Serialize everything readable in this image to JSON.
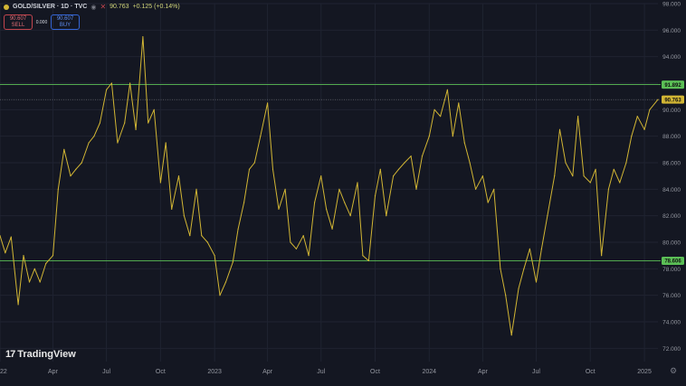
{
  "header": {
    "symbol": "GOLD/SILVER · 1D · TVC",
    "last_value": "90.763",
    "change": "+0.125 (+0.14%)",
    "eye_icon": "eye-off-icon",
    "remove_icon": "close-icon",
    "sell_price": "90.607",
    "sell_label": "SELL",
    "spread": "0.000",
    "buy_price": "90.607",
    "buy_label": "BUY"
  },
  "branding": {
    "logo_text": "TradingView",
    "settings_icon": "gear-icon"
  },
  "colors": {
    "background": "#141722",
    "line": "#d2b634",
    "level_line": "#5bbf56",
    "grid": "#1f2331",
    "axis_text": "#9598a1"
  },
  "chart_data": {
    "type": "line",
    "title": "",
    "xlabel": "",
    "ylabel": "",
    "ylim": [
      71,
      98
    ],
    "xlim": [
      "2022-01-01",
      "2025-01-24"
    ],
    "y_ticks": [
      "98.000",
      "96.000",
      "94.000",
      "92.000",
      "90.000",
      "88.000",
      "86.000",
      "84.000",
      "82.000",
      "80.000",
      "78.000",
      "76.000",
      "74.000",
      "72.000"
    ],
    "y_tick_values": [
      98,
      96,
      94,
      92,
      90,
      88,
      86,
      84,
      82,
      80,
      78,
      76,
      74,
      72
    ],
    "x_ticks": [
      "2022",
      "Apr",
      "Jul",
      "Oct",
      "2023",
      "Apr",
      "Jul",
      "Oct",
      "2024",
      "Apr",
      "Jul",
      "Oct",
      "2025"
    ],
    "x_tick_values": [
      "2022-01-01",
      "2022-04-01",
      "2022-07-01",
      "2022-10-01",
      "2023-01-01",
      "2023-04-01",
      "2023-07-01",
      "2023-10-01",
      "2024-01-01",
      "2024-04-01",
      "2024-07-01",
      "2024-10-01",
      "2025-01-01"
    ],
    "horizontal_levels": [
      {
        "value": 91.892,
        "label": "91.892"
      },
      {
        "value": 78.606,
        "label": "78.606"
      }
    ],
    "last_price": {
      "value": 90.763,
      "label": "90.763"
    },
    "grid": true,
    "series": [
      {
        "x": [
          "2022-01-01",
          "2022-01-10",
          "2022-01-20",
          "2022-02-01",
          "2022-02-10",
          "2022-02-20",
          "2022-03-01",
          "2022-03-10",
          "2022-03-20",
          "2022-04-01",
          "2022-04-10",
          "2022-04-20",
          "2022-05-01",
          "2022-05-10",
          "2022-05-20",
          "2022-06-01",
          "2022-06-10",
          "2022-06-20",
          "2022-07-01",
          "2022-07-10",
          "2022-07-20",
          "2022-08-01",
          "2022-08-10",
          "2022-08-20",
          "2022-09-01",
          "2022-09-10",
          "2022-09-20",
          "2022-10-01",
          "2022-10-10",
          "2022-10-20",
          "2022-11-01",
          "2022-11-10",
          "2022-11-20",
          "2022-12-01",
          "2022-12-10",
          "2022-12-20",
          "2023-01-01",
          "2023-01-10",
          "2023-01-20",
          "2023-02-01",
          "2023-02-10",
          "2023-02-20",
          "2023-03-01",
          "2023-03-10",
          "2023-03-20",
          "2023-04-01",
          "2023-04-10",
          "2023-04-20",
          "2023-05-01",
          "2023-05-10",
          "2023-05-20",
          "2023-06-01",
          "2023-06-10",
          "2023-06-20",
          "2023-07-01",
          "2023-07-10",
          "2023-07-20",
          "2023-08-01",
          "2023-08-10",
          "2023-08-20",
          "2023-09-01",
          "2023-09-10",
          "2023-09-20",
          "2023-10-01",
          "2023-10-10",
          "2023-10-20",
          "2023-11-01",
          "2023-11-10",
          "2023-11-20",
          "2023-12-01",
          "2023-12-10",
          "2023-12-20",
          "2024-01-01",
          "2024-01-10",
          "2024-01-20",
          "2024-02-01",
          "2024-02-10",
          "2024-02-20",
          "2024-03-01",
          "2024-03-10",
          "2024-03-20",
          "2024-04-01",
          "2024-04-10",
          "2024-04-20",
          "2024-05-01",
          "2024-05-10",
          "2024-05-20",
          "2024-06-01",
          "2024-06-10",
          "2024-06-20",
          "2024-07-01",
          "2024-07-10",
          "2024-07-20",
          "2024-08-01",
          "2024-08-10",
          "2024-08-20",
          "2024-09-01",
          "2024-09-10",
          "2024-09-20",
          "2024-10-01",
          "2024-10-10",
          "2024-10-20",
          "2024-11-01",
          "2024-11-10",
          "2024-11-20",
          "2024-12-01",
          "2024-12-10",
          "2024-12-20",
          "2025-01-01",
          "2025-01-10",
          "2025-01-24"
        ],
        "values": [
          80.5,
          79.2,
          80.4,
          75.3,
          79.0,
          77.0,
          78.0,
          77.0,
          78.4,
          79.0,
          84.0,
          87.0,
          85.0,
          85.5,
          86.0,
          87.5,
          88.0,
          89.0,
          91.5,
          92.0,
          87.5,
          89.0,
          92.0,
          88.5,
          95.5,
          89.0,
          90.0,
          84.5,
          87.5,
          82.5,
          85.0,
          82.0,
          80.5,
          84.0,
          80.5,
          80.0,
          79.0,
          76.0,
          77.0,
          78.5,
          81.0,
          83.0,
          85.5,
          86.0,
          88.0,
          90.5,
          85.5,
          82.5,
          84.0,
          80.0,
          79.5,
          80.5,
          79.0,
          83.0,
          85.0,
          82.5,
          81.0,
          84.0,
          83.0,
          82.0,
          84.5,
          79.0,
          78.6,
          83.5,
          85.5,
          82.0,
          85.0,
          85.5,
          86.0,
          86.5,
          84.0,
          86.5,
          88.0,
          90.0,
          89.5,
          91.5,
          88.0,
          90.5,
          87.5,
          86.0,
          84.0,
          85.0,
          83.0,
          84.0,
          78.0,
          76.0,
          73.0,
          76.5,
          78.0,
          79.5,
          77.0,
          79.5,
          82.0,
          85.0,
          88.5,
          86.0,
          85.0,
          89.5,
          85.0,
          84.5,
          85.5,
          79.0,
          84.0,
          85.5,
          84.5,
          86.0,
          88.0,
          89.5,
          88.5,
          90.0,
          90.763
        ]
      }
    ]
  }
}
